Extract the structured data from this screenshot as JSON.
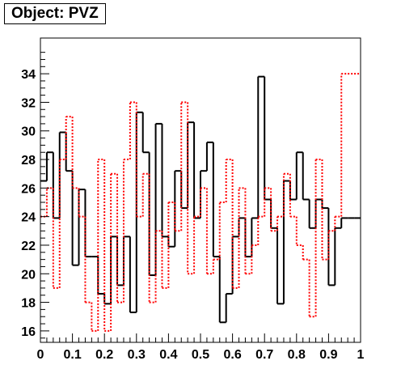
{
  "title": "Object: PVZ",
  "chart_data": {
    "type": "step",
    "title": "Object: PVZ",
    "xlim": [
      0,
      1
    ],
    "ylim": [
      15.2,
      36.5
    ],
    "x_ticks": [
      0,
      0.1,
      0.2,
      0.3,
      0.4,
      0.5,
      0.6,
      0.7,
      0.8,
      0.9,
      1
    ],
    "x_tick_labels": [
      "0",
      "0.1",
      "0.2",
      "0.3",
      "0.4",
      "0.5",
      "0.6",
      "0.7",
      "0.8",
      "0.9",
      "1"
    ],
    "y_ticks": [
      16,
      18,
      20,
      22,
      24,
      26,
      28,
      30,
      32,
      34
    ],
    "y_tick_labels": [
      "16",
      "18",
      "20",
      "22",
      "24",
      "26",
      "28",
      "30",
      "32",
      "34"
    ],
    "grid": false,
    "bins": 50,
    "series": [
      {
        "style": "solid",
        "color": "#000000",
        "values": [
          26.5,
          28.5,
          23.9,
          29.9,
          27.2,
          20.6,
          25.9,
          21.2,
          21.2,
          18.6,
          17.9,
          22.6,
          19.2,
          22.6,
          17.3,
          31.3,
          28.5,
          19.9,
          30.5,
          22.6,
          21.9,
          27.2,
          24.6,
          30.6,
          23.9,
          27.2,
          29.2,
          21.2,
          16.6,
          18.6,
          22.6,
          23.9,
          21.2,
          23.9,
          33.8,
          25.2,
          23.2,
          17.9,
          26.5,
          25.2,
          28.5,
          25.2,
          23.2,
          25.2,
          24.6,
          19.2,
          23.2,
          23.9,
          23.9,
          23.9
        ]
      },
      {
        "style": "dotted",
        "color": "#ff0000",
        "values": [
          24.0,
          26.0,
          19.0,
          28.0,
          31.0,
          26.0,
          24.0,
          18.0,
          16.0,
          28.0,
          16.0,
          27.0,
          18.0,
          28.0,
          32.0,
          24.0,
          27.0,
          18.0,
          23.0,
          19.0,
          25.0,
          23.0,
          32.0,
          20.0,
          24.0,
          26.0,
          20.0,
          21.0,
          25.0,
          28.0,
          19.0,
          26.0,
          20.0,
          22.0,
          24.0,
          26.0,
          23.0,
          24.0,
          27.0,
          24.0,
          22.0,
          21.0,
          17.0,
          28.0,
          21.0,
          23.0,
          24.0,
          34.0,
          34.0,
          34.0
        ]
      }
    ]
  }
}
